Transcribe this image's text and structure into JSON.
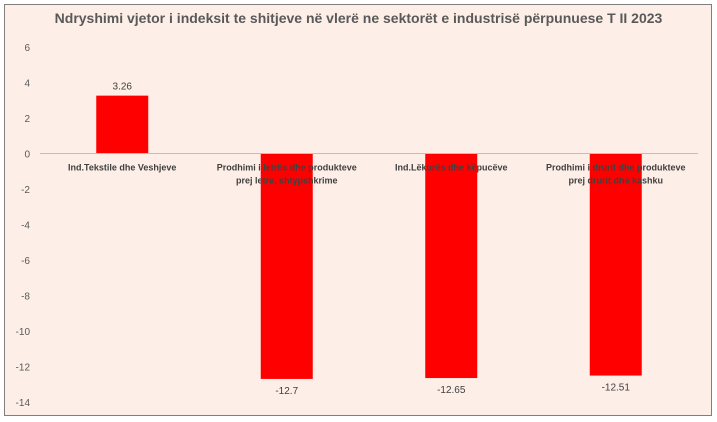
{
  "chart_data": {
    "type": "bar",
    "title": "Ndryshimi vjetor i indeksit te shitjeve në vlerë ne sektorët e industrisë përpunuese T II 2023",
    "categories": [
      [
        "Ind.Tekstile dhe Veshjeve"
      ],
      [
        "Prodhimi i letrës dhe produkteve",
        "prej letre, shtypshkrime"
      ],
      [
        "Ind.Lëkurës dhe këpucëve"
      ],
      [
        "Prodhimi i drurit dhe produkteve",
        "prej drurit dhe kashku"
      ]
    ],
    "values": [
      3.26,
      -12.7,
      -12.65,
      -12.51
    ],
    "data_labels": [
      "3.26",
      "-12.7",
      "-12.65",
      "-12.51"
    ],
    "ylim": [
      -14,
      6
    ],
    "yticks": [
      6,
      4,
      2,
      0,
      -2,
      -4,
      -6,
      -8,
      -10,
      -12,
      -14
    ],
    "grid": false,
    "legend": "none",
    "bar_color": "#ff0000",
    "xlabel": "",
    "ylabel": ""
  }
}
